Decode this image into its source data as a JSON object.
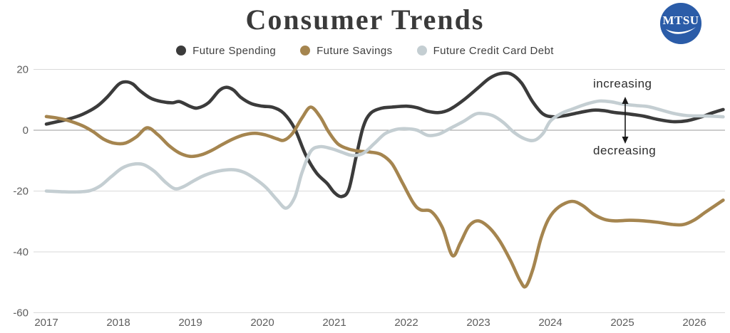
{
  "title": "Consumer Trends",
  "logo": {
    "text": "MTSU",
    "bg_color": "#2b5ca8"
  },
  "annotations": {
    "increasing": "increasing",
    "decreasing": "decreasing"
  },
  "axes": {
    "y_ticks": [
      "20",
      "0",
      "-20",
      "-40",
      "-60"
    ],
    "y_values": [
      20,
      0,
      -20,
      -40,
      -60
    ],
    "x_ticks": [
      "2017",
      "2018",
      "2019",
      "2020",
      "2021",
      "2022",
      "2023",
      "2024",
      "2025",
      "2026"
    ],
    "x_values": [
      2017,
      2018,
      2019,
      2020,
      2021,
      2022,
      2023,
      2024,
      2025,
      2026
    ]
  },
  "chart_data": {
    "type": "line",
    "title": "Consumer Trends",
    "xlabel": "",
    "ylabel": "",
    "x_range": [
      2017,
      2026.4
    ],
    "ylim": [
      -60,
      20
    ],
    "grid": true,
    "legend_position": "top",
    "zero_line_color": "#999999",
    "grid_color": "#d9d9d9",
    "series": [
      {
        "name": "Future Spending",
        "color": "#3b3b3b",
        "points": [
          [
            2017.0,
            2.0
          ],
          [
            2017.15,
            2.8
          ],
          [
            2017.3,
            3.6
          ],
          [
            2017.5,
            5.2
          ],
          [
            2017.7,
            7.8
          ],
          [
            2017.85,
            11.0
          ],
          [
            2018.0,
            15.0
          ],
          [
            2018.1,
            15.9
          ],
          [
            2018.2,
            15.2
          ],
          [
            2018.3,
            13.0
          ],
          [
            2018.45,
            10.5
          ],
          [
            2018.6,
            9.4
          ],
          [
            2018.75,
            9.0
          ],
          [
            2018.85,
            9.4
          ],
          [
            2019.0,
            7.8
          ],
          [
            2019.1,
            7.3
          ],
          [
            2019.25,
            9.0
          ],
          [
            2019.4,
            13.0
          ],
          [
            2019.5,
            14.1
          ],
          [
            2019.6,
            13.2
          ],
          [
            2019.7,
            10.8
          ],
          [
            2019.85,
            8.7
          ],
          [
            2020.0,
            7.9
          ],
          [
            2020.15,
            7.5
          ],
          [
            2020.3,
            5.5
          ],
          [
            2020.45,
            0.5
          ],
          [
            2020.6,
            -8.0
          ],
          [
            2020.75,
            -14.0
          ],
          [
            2020.9,
            -17.5
          ],
          [
            2021.0,
            -20.5
          ],
          [
            2021.1,
            -21.8
          ],
          [
            2021.2,
            -19.5
          ],
          [
            2021.3,
            -9.0
          ],
          [
            2021.4,
            1.0
          ],
          [
            2021.5,
            5.5
          ],
          [
            2021.65,
            7.2
          ],
          [
            2021.8,
            7.6
          ],
          [
            2022.0,
            7.9
          ],
          [
            2022.15,
            7.4
          ],
          [
            2022.3,
            6.2
          ],
          [
            2022.45,
            5.8
          ],
          [
            2022.6,
            6.8
          ],
          [
            2022.8,
            10.0
          ],
          [
            2023.0,
            14.0
          ],
          [
            2023.15,
            17.0
          ],
          [
            2023.3,
            18.6
          ],
          [
            2023.45,
            18.5
          ],
          [
            2023.6,
            15.5
          ],
          [
            2023.75,
            9.5
          ],
          [
            2023.9,
            5.3
          ],
          [
            2024.05,
            4.4
          ],
          [
            2024.2,
            4.8
          ],
          [
            2024.4,
            5.8
          ],
          [
            2024.6,
            6.6
          ],
          [
            2024.75,
            6.4
          ],
          [
            2024.9,
            5.8
          ],
          [
            2025.1,
            5.3
          ],
          [
            2025.3,
            4.6
          ],
          [
            2025.5,
            3.5
          ],
          [
            2025.7,
            2.8
          ],
          [
            2025.9,
            3.1
          ],
          [
            2026.1,
            4.4
          ],
          [
            2026.25,
            5.7
          ],
          [
            2026.4,
            6.8
          ]
        ]
      },
      {
        "name": "Future Savings",
        "color": "#a5854f",
        "points": [
          [
            2017.0,
            4.5
          ],
          [
            2017.15,
            4.0
          ],
          [
            2017.3,
            3.2
          ],
          [
            2017.5,
            1.5
          ],
          [
            2017.65,
            -0.5
          ],
          [
            2017.8,
            -3.0
          ],
          [
            2017.95,
            -4.3
          ],
          [
            2018.1,
            -4.2
          ],
          [
            2018.25,
            -2.2
          ],
          [
            2018.4,
            0.8
          ],
          [
            2018.55,
            -1.5
          ],
          [
            2018.7,
            -5.0
          ],
          [
            2018.85,
            -7.5
          ],
          [
            2019.0,
            -8.6
          ],
          [
            2019.15,
            -8.1
          ],
          [
            2019.3,
            -6.6
          ],
          [
            2019.45,
            -4.6
          ],
          [
            2019.6,
            -2.8
          ],
          [
            2019.75,
            -1.5
          ],
          [
            2019.9,
            -1.0
          ],
          [
            2020.05,
            -1.6
          ],
          [
            2020.2,
            -2.8
          ],
          [
            2020.3,
            -3.3
          ],
          [
            2020.42,
            -1.0
          ],
          [
            2020.55,
            4.0
          ],
          [
            2020.67,
            7.6
          ],
          [
            2020.8,
            4.5
          ],
          [
            2020.92,
            -0.5
          ],
          [
            2021.05,
            -4.5
          ],
          [
            2021.2,
            -6.2
          ],
          [
            2021.35,
            -6.9
          ],
          [
            2021.5,
            -7.2
          ],
          [
            2021.65,
            -8.0
          ],
          [
            2021.8,
            -11.0
          ],
          [
            2021.95,
            -17.5
          ],
          [
            2022.1,
            -24.0
          ],
          [
            2022.2,
            -26.2
          ],
          [
            2022.35,
            -26.8
          ],
          [
            2022.5,
            -32.0
          ],
          [
            2022.64,
            -41.2
          ],
          [
            2022.75,
            -37.0
          ],
          [
            2022.87,
            -31.5
          ],
          [
            2023.0,
            -29.8
          ],
          [
            2023.15,
            -32.0
          ],
          [
            2023.3,
            -36.5
          ],
          [
            2023.45,
            -43.0
          ],
          [
            2023.58,
            -49.5
          ],
          [
            2023.66,
            -51.3
          ],
          [
            2023.76,
            -45.5
          ],
          [
            2023.87,
            -35.5
          ],
          [
            2023.98,
            -29.0
          ],
          [
            2024.12,
            -25.2
          ],
          [
            2024.3,
            -23.4
          ],
          [
            2024.45,
            -24.8
          ],
          [
            2024.6,
            -27.6
          ],
          [
            2024.75,
            -29.3
          ],
          [
            2024.9,
            -29.8
          ],
          [
            2025.1,
            -29.6
          ],
          [
            2025.3,
            -29.8
          ],
          [
            2025.5,
            -30.3
          ],
          [
            2025.7,
            -31.0
          ],
          [
            2025.85,
            -31.0
          ],
          [
            2026.0,
            -29.5
          ],
          [
            2026.15,
            -27.0
          ],
          [
            2026.3,
            -24.6
          ],
          [
            2026.4,
            -23.0
          ]
        ]
      },
      {
        "name": "Future Credit Card Debt",
        "color": "#c4ced2",
        "points": [
          [
            2017.0,
            -20.0
          ],
          [
            2017.2,
            -20.2
          ],
          [
            2017.4,
            -20.3
          ],
          [
            2017.6,
            -19.9
          ],
          [
            2017.75,
            -18.3
          ],
          [
            2017.9,
            -15.3
          ],
          [
            2018.05,
            -12.5
          ],
          [
            2018.2,
            -11.2
          ],
          [
            2018.35,
            -11.3
          ],
          [
            2018.5,
            -13.5
          ],
          [
            2018.65,
            -17.0
          ],
          [
            2018.78,
            -19.2
          ],
          [
            2018.9,
            -18.6
          ],
          [
            2019.05,
            -16.6
          ],
          [
            2019.2,
            -14.8
          ],
          [
            2019.4,
            -13.4
          ],
          [
            2019.6,
            -13.0
          ],
          [
            2019.75,
            -13.9
          ],
          [
            2019.9,
            -16.0
          ],
          [
            2020.05,
            -18.8
          ],
          [
            2020.2,
            -22.8
          ],
          [
            2020.33,
            -25.6
          ],
          [
            2020.45,
            -22.0
          ],
          [
            2020.55,
            -14.0
          ],
          [
            2020.67,
            -7.0
          ],
          [
            2020.8,
            -5.4
          ],
          [
            2020.95,
            -6.0
          ],
          [
            2021.1,
            -7.2
          ],
          [
            2021.25,
            -8.3
          ],
          [
            2021.4,
            -7.6
          ],
          [
            2021.55,
            -4.5
          ],
          [
            2021.7,
            -1.2
          ],
          [
            2021.85,
            0.2
          ],
          [
            2022.0,
            0.5
          ],
          [
            2022.15,
            0.0
          ],
          [
            2022.3,
            -1.7
          ],
          [
            2022.45,
            -1.3
          ],
          [
            2022.6,
            0.5
          ],
          [
            2022.8,
            3.0
          ],
          [
            2022.95,
            5.2
          ],
          [
            2023.05,
            5.5
          ],
          [
            2023.2,
            4.8
          ],
          [
            2023.35,
            2.5
          ],
          [
            2023.5,
            -0.8
          ],
          [
            2023.65,
            -2.9
          ],
          [
            2023.78,
            -3.3
          ],
          [
            2023.9,
            -1.0
          ],
          [
            2024.0,
            3.0
          ],
          [
            2024.15,
            5.5
          ],
          [
            2024.3,
            6.9
          ],
          [
            2024.5,
            8.6
          ],
          [
            2024.68,
            9.6
          ],
          [
            2024.85,
            9.3
          ],
          [
            2025.0,
            8.6
          ],
          [
            2025.2,
            8.1
          ],
          [
            2025.35,
            7.8
          ],
          [
            2025.5,
            6.9
          ],
          [
            2025.7,
            5.6
          ],
          [
            2025.9,
            4.8
          ],
          [
            2026.1,
            4.7
          ],
          [
            2026.25,
            4.6
          ],
          [
            2026.4,
            4.4
          ]
        ]
      }
    ]
  }
}
